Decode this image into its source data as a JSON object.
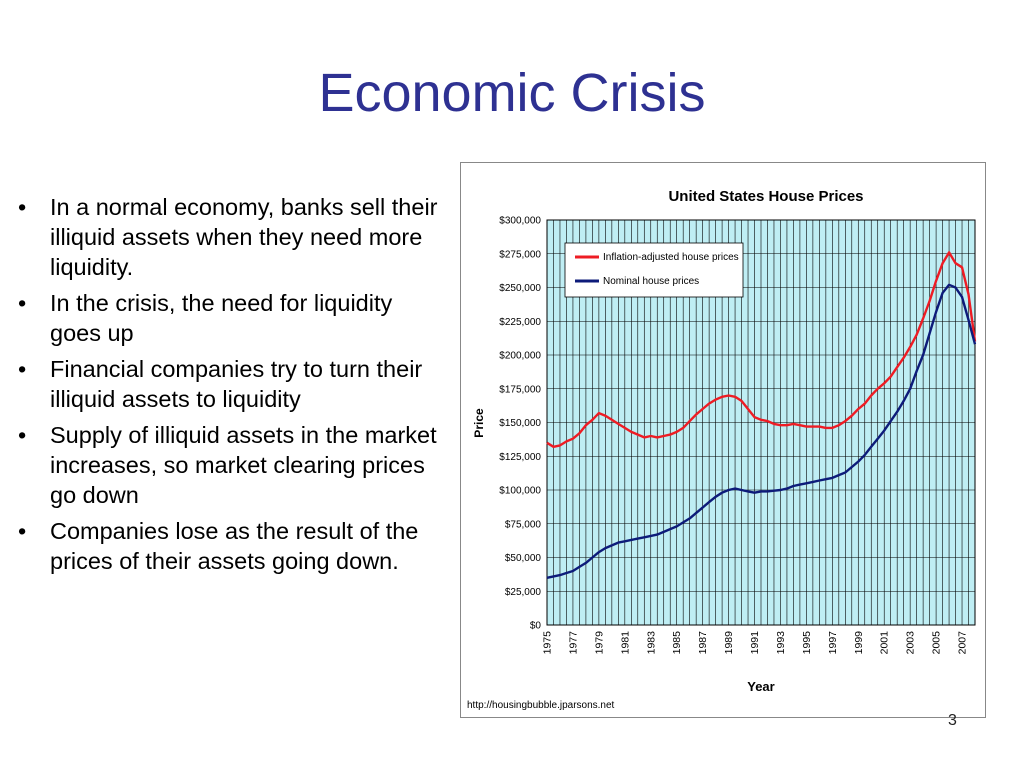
{
  "slide": {
    "title": "Economic Crisis",
    "page_number": "3"
  },
  "bullets": [
    {
      "marker": "•",
      "text": "In a normal economy, banks sell their illiquid assets when they need more liquidity."
    },
    {
      "marker": "•",
      "text": "In the crisis, the need for liquidity goes up"
    },
    {
      "marker": "•",
      "text": "Financial companies try to turn their illiquid assets to liquidity"
    },
    {
      "marker": "•",
      "text": "Supply of illiquid assets in the market increases, so market clearing prices go down"
    },
    {
      "marker": "•",
      "text": "Companies lose as the result of the prices of their assets going down."
    }
  ],
  "colors": {
    "title": "#2e3192",
    "plot_background": "#bfeef4",
    "grid": "#000000",
    "inflation_series": "#ee1c24",
    "nominal_series": "#0d1b7a"
  },
  "chart_data": {
    "type": "line",
    "title": "United States House Prices",
    "xlabel": "Year",
    "ylabel": "Price",
    "source": "http://housingbubble.jparsons.net",
    "xlim": [
      1975,
      2008
    ],
    "ylim": [
      0,
      300000
    ],
    "y_ticks": [
      0,
      25000,
      50000,
      75000,
      100000,
      125000,
      150000,
      175000,
      200000,
      225000,
      250000,
      275000,
      300000
    ],
    "y_tick_labels": [
      "$0",
      "$25,000",
      "$50,000",
      "$75,000",
      "$100,000",
      "$125,000",
      "$150,000",
      "$175,000",
      "$200,000",
      "$225,000",
      "$250,000",
      "$275,000",
      "$300,000"
    ],
    "x_tick_labels": [
      "1975",
      "1977",
      "1979",
      "1981",
      "1983",
      "1985",
      "1987",
      "1989",
      "1991",
      "1993",
      "1995",
      "1997",
      "1999",
      "2001",
      "2003",
      "2005",
      "2007"
    ],
    "grid": true,
    "legend_position": "top-left",
    "series": [
      {
        "name": "Inflation-adjusted house prices",
        "color": "#ee1c24",
        "x": [
          1975,
          1975.5,
          1976,
          1976.5,
          1977,
          1977.5,
          1978,
          1978.5,
          1979,
          1979.5,
          1980,
          1980.5,
          1981,
          1981.5,
          1982,
          1982.5,
          1983,
          1983.5,
          1984,
          1984.5,
          1985,
          1985.5,
          1986,
          1986.5,
          1987,
          1987.5,
          1988,
          1988.5,
          1989,
          1989.5,
          1990,
          1990.5,
          1991,
          1991.5,
          1992,
          1992.5,
          1993,
          1993.5,
          1994,
          1994.5,
          1995,
          1995.5,
          1996,
          1996.5,
          1997,
          1997.5,
          1998,
          1998.5,
          1999,
          1999.5,
          2000,
          2000.5,
          2001,
          2001.5,
          2002,
          2002.5,
          2003,
          2003.5,
          2004,
          2004.5,
          2005,
          2005.5,
          2006,
          2006.5,
          2007,
          2007.5,
          2008
        ],
        "values": [
          135000,
          132000,
          133000,
          136000,
          138000,
          142000,
          148000,
          152000,
          157000,
          155000,
          152000,
          149000,
          146000,
          143000,
          141000,
          139000,
          140000,
          139000,
          140000,
          141000,
          143000,
          146000,
          151000,
          156000,
          160000,
          164000,
          167000,
          169000,
          170000,
          169000,
          166000,
          160000,
          154000,
          152000,
          151000,
          149000,
          148000,
          148000,
          149000,
          148000,
          147000,
          147000,
          147000,
          146000,
          146000,
          148000,
          151000,
          155000,
          160000,
          164000,
          170000,
          175000,
          179000,
          184000,
          191000,
          198000,
          206000,
          215000,
          227000,
          240000,
          255000,
          268000,
          276000,
          268000,
          265000,
          245000,
          210000
        ]
      },
      {
        "name": "Nominal house prices",
        "color": "#0d1b7a",
        "x": [
          1975,
          1975.5,
          1976,
          1976.5,
          1977,
          1977.5,
          1978,
          1978.5,
          1979,
          1979.5,
          1980,
          1980.5,
          1981,
          1981.5,
          1982,
          1982.5,
          1983,
          1983.5,
          1984,
          1984.5,
          1985,
          1985.5,
          1986,
          1986.5,
          1987,
          1987.5,
          1988,
          1988.5,
          1989,
          1989.5,
          1990,
          1990.5,
          1991,
          1991.5,
          1992,
          1992.5,
          1993,
          1993.5,
          1994,
          1994.5,
          1995,
          1995.5,
          1996,
          1996.5,
          1997,
          1997.5,
          1998,
          1998.5,
          1999,
          1999.5,
          2000,
          2000.5,
          2001,
          2001.5,
          2002,
          2002.5,
          2003,
          2003.5,
          2004,
          2004.5,
          2005,
          2005.5,
          2006,
          2006.5,
          2007,
          2007.5,
          2008
        ],
        "values": [
          35000,
          36000,
          37000,
          38500,
          40000,
          43000,
          46000,
          50000,
          54000,
          57000,
          59000,
          61000,
          62000,
          63000,
          64000,
          65000,
          66000,
          67000,
          69000,
          71000,
          73000,
          76000,
          79000,
          83000,
          87000,
          91000,
          95000,
          98000,
          100000,
          101000,
          100000,
          99000,
          98000,
          99000,
          99000,
          99500,
          100000,
          101000,
          103000,
          104000,
          105000,
          106000,
          107000,
          108000,
          109000,
          111000,
          113000,
          117000,
          121000,
          126000,
          132000,
          138000,
          144000,
          151000,
          158000,
          166000,
          175000,
          188000,
          200000,
          216000,
          232000,
          246000,
          252000,
          250000,
          243000,
          226000,
          208000
        ]
      }
    ]
  }
}
